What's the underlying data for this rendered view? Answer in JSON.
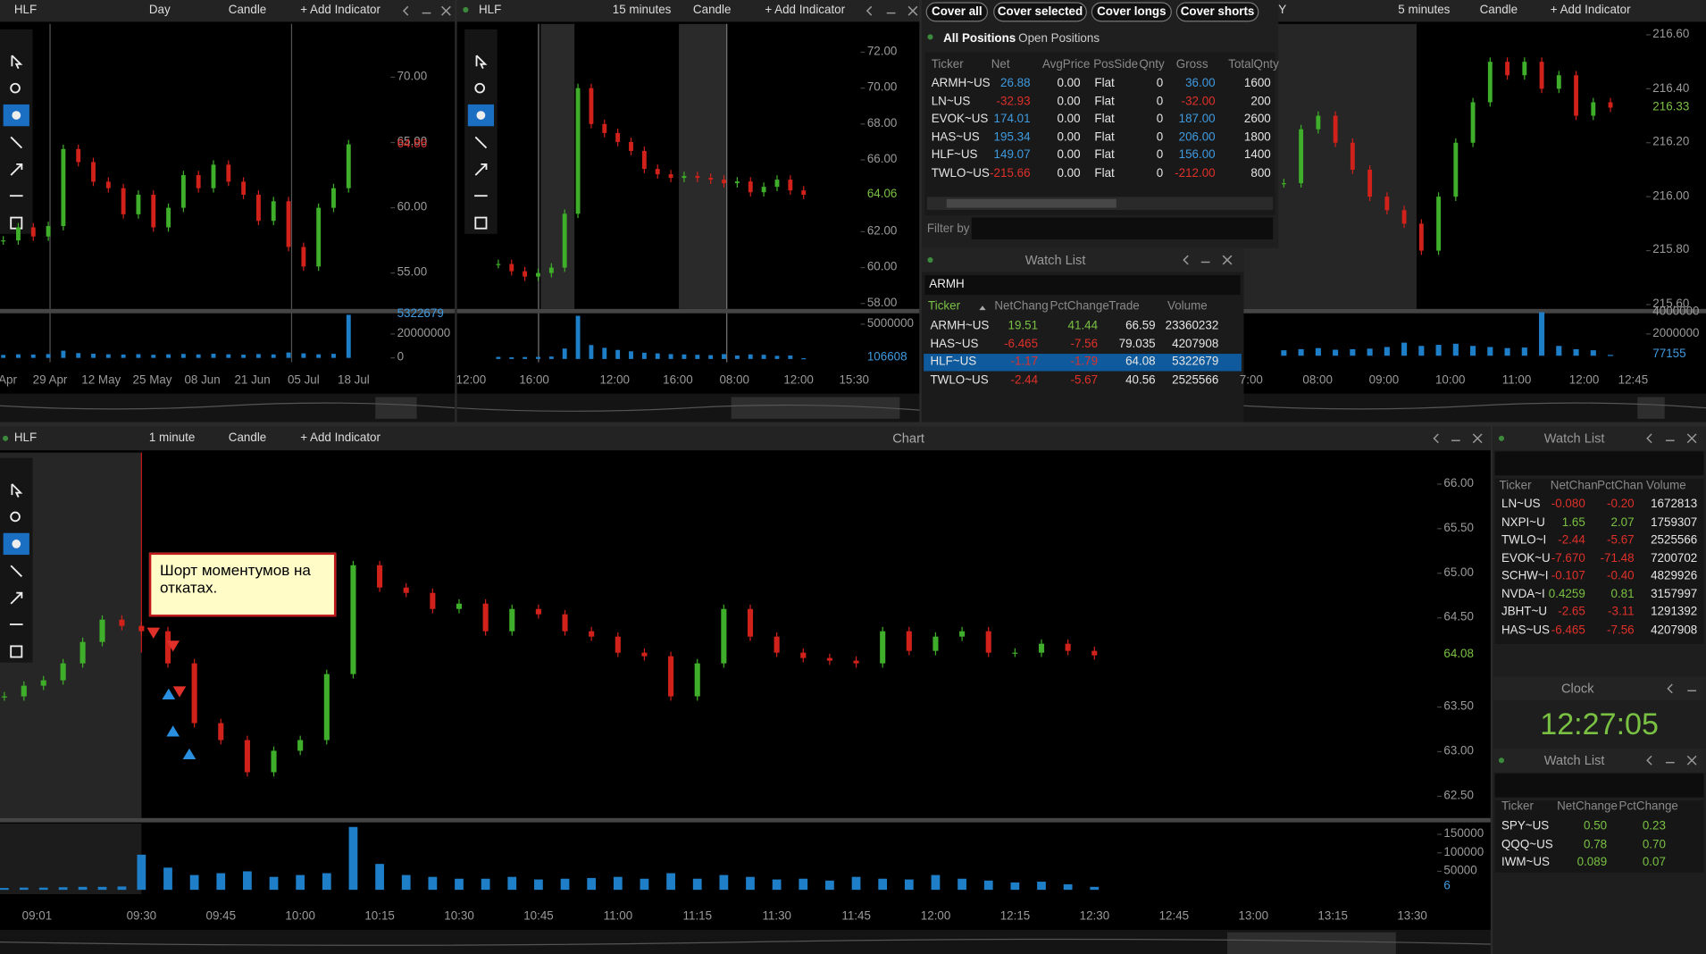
{
  "colors": {
    "up": "#3fae2a",
    "down": "#d0211b",
    "volume": "#1e7fc8",
    "positive_green": "#7ac143",
    "negative": "#e0302a",
    "positive_blue": "#3f9be0",
    "clock": "#7ac143"
  },
  "top_charts": [
    {
      "header": {
        "symbol": "HLF",
        "interval": "Day",
        "style": "Candle",
        "add_indicator": "+ Add Indicator"
      },
      "price_ticks": [
        {
          "value": 70,
          "label": "70.00"
        },
        {
          "value": 65,
          "label": "65.00"
        },
        {
          "value": 60,
          "label": "60.00"
        },
        {
          "value": 55,
          "label": "55.00"
        }
      ],
      "last_price": "64.86",
      "last_color": "#e0302a",
      "volume_ticks": [
        20000000,
        0
      ],
      "last_volume": "5322679",
      "time_ticks": [
        "Apr",
        "29 Apr",
        "12 May",
        "25 May",
        "08 Jun",
        "21 Jun",
        "05 Jul",
        "18 Jul"
      ],
      "closes": [
        57.5,
        58.5,
        57.8,
        58.6,
        64.5,
        63.5,
        62,
        61.5,
        59.5,
        61,
        58.5,
        60,
        62.5,
        61.5,
        63.3,
        62,
        61,
        59,
        60.5,
        57,
        55.5,
        60,
        61.5,
        64.86
      ],
      "volumes": [
        2500000,
        3000000,
        2800000,
        3200000,
        6000000,
        4000000,
        3500000,
        3000000,
        2800000,
        3100000,
        2600000,
        3000000,
        3300000,
        2900000,
        3500000,
        3000000,
        2700000,
        3200000,
        2900000,
        4500000,
        3800000,
        3000000,
        3400000,
        36000000
      ]
    },
    {
      "header": {
        "symbol": "HLF",
        "interval": "15 minutes",
        "style": "Candle",
        "add_indicator": "+ Add Indicator"
      },
      "price_ticks": [
        {
          "value": 72,
          "label": "72.00"
        },
        {
          "value": 70,
          "label": "70.00"
        },
        {
          "value": 68,
          "label": "68.00"
        },
        {
          "value": 66,
          "label": "66.00"
        },
        {
          "value": 62,
          "label": "62.00"
        },
        {
          "value": 60,
          "label": "60.00"
        },
        {
          "value": 58,
          "label": "58.00"
        }
      ],
      "last_price": "64.06",
      "last_color": "#7ac143",
      "volume_ticks": [
        5000000
      ],
      "last_volume": "106608",
      "time_ticks": [
        "12:00",
        "16:00",
        "12:00",
        "16:00",
        "08:00",
        "12:00",
        "15:30"
      ],
      "closes": [
        60.2,
        59.8,
        59.5,
        59.7,
        60,
        63,
        70,
        68,
        67.5,
        67,
        66.5,
        65.5,
        65.2,
        65,
        65.1,
        65,
        64.9,
        64.7,
        64.8,
        64.2,
        64.5,
        64.9,
        64.3,
        64.06
      ],
      "volumes": [
        300000,
        250000,
        280000,
        300000,
        350000,
        1500000,
        6200000,
        2000000,
        1600000,
        1300000,
        1100000,
        900000,
        800000,
        700000,
        650000,
        600000,
        550000,
        700000,
        500000,
        650000,
        600000,
        450000,
        500000,
        106608
      ]
    },
    {
      "header": {
        "symbol": "Y",
        "interval": "5 minutes",
        "style": "Candle",
        "add_indicator": "+ Add Indicator"
      },
      "price_ticks": [
        {
          "value": 216.6,
          "label": "216.60"
        },
        {
          "value": 216.4,
          "label": "216.40"
        },
        {
          "value": 216.2,
          "label": "216.20"
        },
        {
          "value": 216,
          "label": "216.00"
        },
        {
          "value": 215.8,
          "label": "215.80"
        },
        {
          "value": 215.6,
          "label": "215.60"
        }
      ],
      "last_price": "216.33",
      "last_color": "#7ac143",
      "volume_ticks": [
        4000000,
        2000000
      ],
      "last_volume": "77155",
      "time_ticks": [
        "7:00",
        "08:00",
        "09:00",
        "10:00",
        "11:00",
        "12:00",
        "12:45"
      ],
      "closes": [
        216.05,
        216.25,
        216.3,
        216.2,
        216.1,
        216,
        215.95,
        215.9,
        215.8,
        216,
        216.2,
        216.35,
        216.5,
        216.45,
        216.5,
        216.4,
        216.45,
        216.3,
        216.35,
        216.33
      ],
      "volumes": [
        500000,
        600000,
        700000,
        550000,
        600000,
        650000,
        800000,
        1200000,
        900000,
        1000000,
        1100000,
        900000,
        800000,
        700000,
        750000,
        4000000,
        900000,
        600000,
        500000,
        77155
      ]
    }
  ],
  "main_chart": {
    "header": {
      "symbol": "HLF",
      "interval": "1 minute",
      "style": "Candle",
      "add_indicator": "+ Add Indicator"
    },
    "title": "Chart",
    "annotation": "Шорт моментумов на откатах.",
    "price_ticks": [
      {
        "value": 66,
        "label": "66.00"
      },
      {
        "value": 65.5,
        "label": "65.50"
      },
      {
        "value": 65,
        "label": "65.00"
      },
      {
        "value": 64.5,
        "label": "64.50"
      },
      {
        "value": 63.5,
        "label": "63.50"
      },
      {
        "value": 63,
        "label": "63.00"
      },
      {
        "value": 62.5,
        "label": "62.50"
      }
    ],
    "last_price": "64.08",
    "last_color": "#7ac143",
    "volume_ticks": [
      150000,
      100000,
      50000
    ],
    "last_volume": "6",
    "time_ticks": [
      "09:01",
      "09:30",
      "09:45",
      "10:00",
      "10:15",
      "10:30",
      "10:45",
      "11:00",
      "11:15",
      "11:30",
      "11:45",
      "12:00",
      "12:15",
      "12:30",
      "12:45",
      "13:00",
      "13:15",
      "13:30"
    ],
    "closes": [
      63.62,
      63.74,
      63.8,
      63.99,
      64.23,
      64.48,
      64.41,
      64.35,
      63.99,
      63.32,
      63.13,
      62.77,
      63.01,
      63.13,
      63.87,
      65.09,
      64.84,
      64.78,
      64.6,
      64.66,
      64.35,
      64.6,
      64.54,
      64.35,
      64.29,
      64.11,
      64.07,
      63.62,
      63.99,
      64.6,
      64.29,
      64.11,
      64.05,
      64.02,
      63.99,
      64.35,
      64.13,
      64.29,
      64.35,
      64.11,
      64.11,
      64.21,
      64.13,
      64.08
    ],
    "volumes": [
      5000,
      6000,
      6000,
      7000,
      8000,
      8000,
      9000,
      95000,
      60000,
      40000,
      45000,
      50000,
      35000,
      40000,
      45000,
      170000,
      70000,
      40000,
      35000,
      30000,
      30000,
      35000,
      28000,
      30000,
      32000,
      35000,
      30000,
      45000,
      30000,
      40000,
      35000,
      28000,
      30000,
      25000,
      35000,
      30000,
      28000,
      40000,
      30000,
      25000,
      20000,
      22000,
      15000,
      8000
    ]
  },
  "positions": {
    "buttons": [
      "Cover all",
      "Cover selected",
      "Cover longs",
      "Cover shorts"
    ],
    "tabs": [
      "All Positions",
      "Open Positions"
    ],
    "columns": [
      "Ticker",
      "Net",
      "AvgPrice",
      "PosSide",
      "Qnty",
      "Gross",
      "TotalQnty"
    ],
    "rows": [
      [
        "ARMH~US",
        "26.88",
        "0.00",
        "Flat",
        "0",
        "36.00",
        "1600"
      ],
      [
        "LN~US",
        "-32.93",
        "0.00",
        "Flat",
        "0",
        "-32.00",
        "200"
      ],
      [
        "EVOK~US",
        "174.01",
        "0.00",
        "Flat",
        "0",
        "187.00",
        "2600"
      ],
      [
        "HAS~US",
        "195.34",
        "0.00",
        "Flat",
        "0",
        "206.00",
        "1800"
      ],
      [
        "HLF~US",
        "149.07",
        "0.00",
        "Flat",
        "0",
        "156.00",
        "1400"
      ],
      [
        "TWLO~US",
        "-215.66",
        "0.00",
        "Flat",
        "0",
        "-212.00",
        "800"
      ]
    ],
    "filter_label": "Filter by"
  },
  "watch_top": {
    "title": "Watch List",
    "symbol_input": "ARMH",
    "selected_row": 2,
    "columns": [
      "Ticker",
      "NetChang",
      "PctChange",
      "Trade",
      "Volume"
    ],
    "rows": [
      [
        "ARMH~US",
        "19.51",
        "41.44",
        "66.59",
        "23360232"
      ],
      [
        "HAS~US",
        "-6.465",
        "-7.56",
        "79.035",
        "4207908"
      ],
      [
        "HLF~US",
        "-1.17",
        "-1.79",
        "64.08",
        "5322679"
      ],
      [
        "TWLO~US",
        "-2.44",
        "-5.67",
        "40.56",
        "2525566"
      ]
    ]
  },
  "watch_right": {
    "title": "Watch List",
    "columns": [
      "Ticker",
      "NetChan",
      "PctChan",
      "Volume"
    ],
    "rows": [
      [
        "LN~US",
        "-0.080",
        "-0.20",
        "1672813"
      ],
      [
        "NXPI~U",
        "1.65",
        "2.07",
        "1759307"
      ],
      [
        "TWLO~I",
        "-2.44",
        "-5.67",
        "2525566"
      ],
      [
        "EVOK~U",
        "-7.670",
        "-71.48",
        "7200702"
      ],
      [
        "SCHW~I",
        "-0.107",
        "-0.40",
        "4829926"
      ],
      [
        "NVDA~I",
        "0.4259",
        "0.81",
        "3157997"
      ],
      [
        "JBHT~U",
        "-2.65",
        "-3.11",
        "1291392"
      ],
      [
        "HAS~US",
        "-6.465",
        "-7.56",
        "4207908"
      ]
    ]
  },
  "clock": {
    "title": "Clock",
    "time": "12:27:05"
  },
  "watch_bottom": {
    "title": "Watch List",
    "columns": [
      "Ticker",
      "NetChange",
      "PctChange"
    ],
    "rows": [
      [
        "SPY~US",
        "0.50",
        "0.23"
      ],
      [
        "QQQ~US",
        "0.78",
        "0.70"
      ],
      [
        "IWM~US",
        "0.089",
        "0.07"
      ]
    ]
  }
}
